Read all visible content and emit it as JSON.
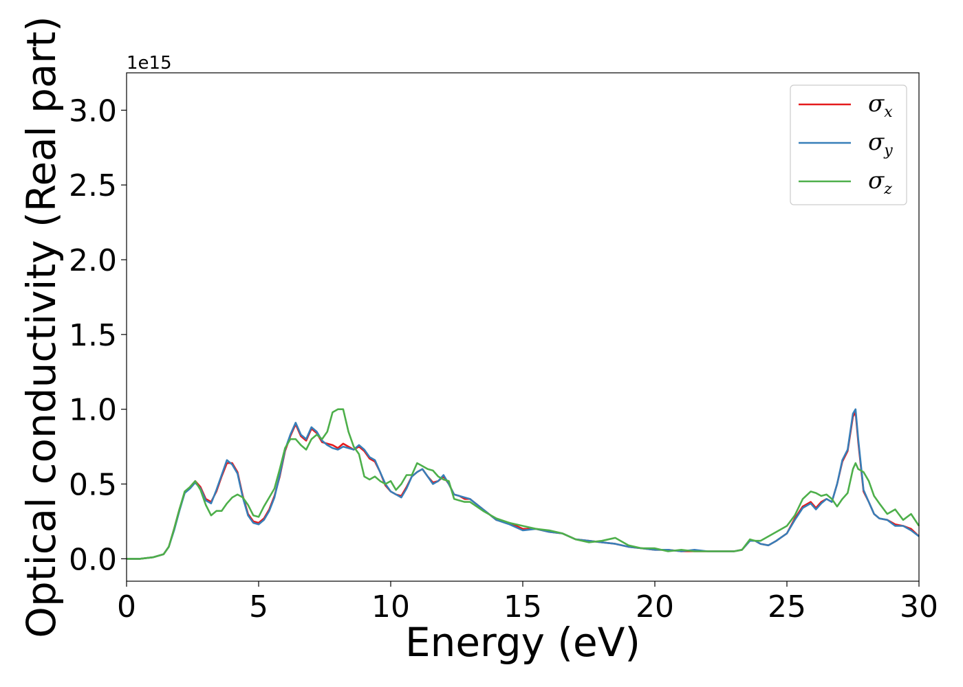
{
  "chart_data": {
    "type": "line",
    "title": "",
    "xlabel": "Energy (eV)",
    "ylabel": "Optical conductivity (Real part)",
    "y_offset_label": "1e15",
    "xlim": [
      0,
      30
    ],
    "ylim": [
      -0.15,
      3.25
    ],
    "x_ticks": [
      0,
      5,
      10,
      15,
      20,
      25,
      30
    ],
    "x_tick_labels": [
      "0",
      "5",
      "10",
      "15",
      "20",
      "25",
      "30"
    ],
    "y_ticks": [
      0.0,
      0.5,
      1.0,
      1.5,
      2.0,
      2.5,
      3.0
    ],
    "y_tick_labels": [
      "0.0",
      "0.5",
      "1.0",
      "1.5",
      "2.0",
      "2.5",
      "3.0"
    ],
    "grid": false,
    "legend_position": "top-right",
    "series": [
      {
        "name": "σx",
        "symbol": "σ",
        "subscript": "x",
        "color": "#e41a1c",
        "x": [
          0,
          0.5,
          1.0,
          1.4,
          1.6,
          1.8,
          2.0,
          2.2,
          2.4,
          2.6,
          2.8,
          3.0,
          3.2,
          3.4,
          3.6,
          3.8,
          4.0,
          4.2,
          4.4,
          4.6,
          4.8,
          5.0,
          5.2,
          5.4,
          5.6,
          5.8,
          6.0,
          6.2,
          6.4,
          6.6,
          6.8,
          7.0,
          7.2,
          7.4,
          7.6,
          7.8,
          8.0,
          8.2,
          8.4,
          8.6,
          8.8,
          9.0,
          9.2,
          9.4,
          9.6,
          9.8,
          10.0,
          10.2,
          10.4,
          10.6,
          10.8,
          11.0,
          11.2,
          11.4,
          11.6,
          11.8,
          12.0,
          12.2,
          12.4,
          12.6,
          12.8,
          13.0,
          13.5,
          14.0,
          14.5,
          15.0,
          15.5,
          16.0,
          16.5,
          17.0,
          17.5,
          18.0,
          18.5,
          19.0,
          19.5,
          20.0,
          20.5,
          21.0,
          21.5,
          22.0,
          22.5,
          23.0,
          23.3,
          23.6,
          23.8,
          24.0,
          24.3,
          24.6,
          25.0,
          25.3,
          25.6,
          25.9,
          26.1,
          26.3,
          26.5,
          26.7,
          26.9,
          27.1,
          27.3,
          27.5,
          27.6,
          27.7,
          27.9,
          28.1,
          28.3,
          28.5,
          28.8,
          29.1,
          29.4,
          29.7,
          30.0
        ],
        "y": [
          0.0,
          0.0,
          0.01,
          0.03,
          0.08,
          0.2,
          0.33,
          0.44,
          0.48,
          0.52,
          0.48,
          0.4,
          0.38,
          0.45,
          0.55,
          0.64,
          0.64,
          0.58,
          0.42,
          0.3,
          0.25,
          0.24,
          0.27,
          0.33,
          0.42,
          0.55,
          0.72,
          0.82,
          0.9,
          0.82,
          0.79,
          0.87,
          0.84,
          0.78,
          0.77,
          0.76,
          0.74,
          0.77,
          0.75,
          0.73,
          0.75,
          0.72,
          0.67,
          0.65,
          0.58,
          0.49,
          0.45,
          0.43,
          0.42,
          0.48,
          0.55,
          0.58,
          0.6,
          0.55,
          0.51,
          0.52,
          0.55,
          0.5,
          0.43,
          0.42,
          0.4,
          0.4,
          0.33,
          0.26,
          0.24,
          0.2,
          0.2,
          0.18,
          0.17,
          0.13,
          0.12,
          0.11,
          0.1,
          0.08,
          0.07,
          0.06,
          0.06,
          0.05,
          0.05,
          0.05,
          0.05,
          0.05,
          0.06,
          0.12,
          0.12,
          0.1,
          0.09,
          0.12,
          0.17,
          0.27,
          0.35,
          0.38,
          0.34,
          0.38,
          0.4,
          0.38,
          0.5,
          0.65,
          0.72,
          0.95,
          0.98,
          0.78,
          0.45,
          0.38,
          0.3,
          0.27,
          0.26,
          0.23,
          0.22,
          0.2,
          0.15
        ]
      },
      {
        "name": "σy",
        "symbol": "σ",
        "subscript": "y",
        "color": "#377eb8",
        "x": [
          0,
          0.5,
          1.0,
          1.4,
          1.6,
          1.8,
          2.0,
          2.2,
          2.4,
          2.6,
          2.8,
          3.0,
          3.2,
          3.4,
          3.6,
          3.8,
          4.0,
          4.2,
          4.4,
          4.6,
          4.8,
          5.0,
          5.2,
          5.4,
          5.6,
          5.8,
          6.0,
          6.2,
          6.4,
          6.6,
          6.8,
          7.0,
          7.2,
          7.4,
          7.6,
          7.8,
          8.0,
          8.2,
          8.4,
          8.6,
          8.8,
          9.0,
          9.2,
          9.4,
          9.6,
          9.8,
          10.0,
          10.2,
          10.4,
          10.6,
          10.8,
          11.0,
          11.2,
          11.4,
          11.6,
          11.8,
          12.0,
          12.2,
          12.4,
          12.6,
          12.8,
          13.0,
          13.5,
          14.0,
          14.5,
          15.0,
          15.5,
          16.0,
          16.5,
          17.0,
          17.5,
          18.0,
          18.5,
          19.0,
          19.5,
          20.0,
          20.5,
          21.0,
          21.5,
          22.0,
          22.5,
          23.0,
          23.3,
          23.6,
          23.8,
          24.0,
          24.3,
          24.6,
          25.0,
          25.3,
          25.6,
          25.9,
          26.1,
          26.3,
          26.5,
          26.7,
          26.9,
          27.1,
          27.3,
          27.5,
          27.6,
          27.7,
          27.9,
          28.1,
          28.3,
          28.5,
          28.8,
          29.1,
          29.4,
          29.7,
          30.0
        ],
        "y": [
          0.0,
          0.0,
          0.01,
          0.03,
          0.08,
          0.19,
          0.32,
          0.44,
          0.47,
          0.51,
          0.47,
          0.39,
          0.37,
          0.46,
          0.56,
          0.66,
          0.63,
          0.57,
          0.41,
          0.29,
          0.24,
          0.23,
          0.26,
          0.32,
          0.41,
          0.56,
          0.73,
          0.83,
          0.91,
          0.83,
          0.8,
          0.88,
          0.85,
          0.79,
          0.76,
          0.74,
          0.73,
          0.75,
          0.74,
          0.73,
          0.76,
          0.73,
          0.68,
          0.66,
          0.58,
          0.5,
          0.45,
          0.43,
          0.41,
          0.47,
          0.55,
          0.58,
          0.6,
          0.55,
          0.5,
          0.52,
          0.56,
          0.5,
          0.43,
          0.42,
          0.41,
          0.4,
          0.33,
          0.26,
          0.23,
          0.19,
          0.2,
          0.18,
          0.17,
          0.13,
          0.12,
          0.11,
          0.1,
          0.08,
          0.07,
          0.06,
          0.06,
          0.05,
          0.06,
          0.05,
          0.05,
          0.05,
          0.06,
          0.12,
          0.12,
          0.1,
          0.09,
          0.12,
          0.17,
          0.26,
          0.34,
          0.37,
          0.33,
          0.37,
          0.4,
          0.38,
          0.5,
          0.66,
          0.73,
          0.97,
          1.0,
          0.8,
          0.46,
          0.38,
          0.3,
          0.27,
          0.26,
          0.22,
          0.22,
          0.19,
          0.15
        ]
      },
      {
        "name": "σz",
        "symbol": "σ",
        "subscript": "z",
        "color": "#4daf4a",
        "x": [
          0,
          0.5,
          1.0,
          1.4,
          1.6,
          1.8,
          2.0,
          2.2,
          2.4,
          2.6,
          2.8,
          3.0,
          3.2,
          3.4,
          3.6,
          3.8,
          4.0,
          4.2,
          4.4,
          4.6,
          4.8,
          5.0,
          5.2,
          5.4,
          5.6,
          5.8,
          6.0,
          6.2,
          6.4,
          6.6,
          6.8,
          7.0,
          7.2,
          7.4,
          7.6,
          7.8,
          8.0,
          8.2,
          8.4,
          8.6,
          8.8,
          9.0,
          9.2,
          9.4,
          9.6,
          9.8,
          10.0,
          10.2,
          10.4,
          10.6,
          10.8,
          11.0,
          11.2,
          11.4,
          11.6,
          11.8,
          12.0,
          12.2,
          12.4,
          12.6,
          12.8,
          13.0,
          13.5,
          14.0,
          14.5,
          15.0,
          15.5,
          16.0,
          16.5,
          17.0,
          17.5,
          18.0,
          18.5,
          19.0,
          19.5,
          20.0,
          20.5,
          21.0,
          21.5,
          22.0,
          22.5,
          23.0,
          23.3,
          23.6,
          23.8,
          24.0,
          24.3,
          24.6,
          25.0,
          25.3,
          25.6,
          25.9,
          26.1,
          26.3,
          26.5,
          26.7,
          26.9,
          27.1,
          27.3,
          27.5,
          27.6,
          27.7,
          27.9,
          28.1,
          28.3,
          28.5,
          28.8,
          29.1,
          29.4,
          29.7,
          30.0
        ],
        "y": [
          0.0,
          0.0,
          0.01,
          0.03,
          0.08,
          0.2,
          0.33,
          0.45,
          0.48,
          0.52,
          0.46,
          0.36,
          0.29,
          0.32,
          0.32,
          0.37,
          0.41,
          0.43,
          0.41,
          0.36,
          0.29,
          0.28,
          0.35,
          0.41,
          0.47,
          0.6,
          0.74,
          0.8,
          0.8,
          0.76,
          0.73,
          0.8,
          0.83,
          0.8,
          0.85,
          0.98,
          1.0,
          1.0,
          0.85,
          0.75,
          0.7,
          0.55,
          0.53,
          0.55,
          0.52,
          0.5,
          0.52,
          0.46,
          0.5,
          0.56,
          0.56,
          0.64,
          0.62,
          0.6,
          0.59,
          0.55,
          0.53,
          0.52,
          0.4,
          0.39,
          0.38,
          0.38,
          0.32,
          0.27,
          0.24,
          0.22,
          0.2,
          0.19,
          0.17,
          0.13,
          0.11,
          0.12,
          0.14,
          0.09,
          0.07,
          0.07,
          0.05,
          0.06,
          0.05,
          0.05,
          0.05,
          0.05,
          0.06,
          0.13,
          0.12,
          0.12,
          0.15,
          0.18,
          0.22,
          0.29,
          0.4,
          0.45,
          0.44,
          0.42,
          0.43,
          0.4,
          0.35,
          0.4,
          0.44,
          0.6,
          0.64,
          0.6,
          0.58,
          0.52,
          0.42,
          0.37,
          0.3,
          0.33,
          0.26,
          0.3,
          0.22
        ]
      }
    ]
  }
}
